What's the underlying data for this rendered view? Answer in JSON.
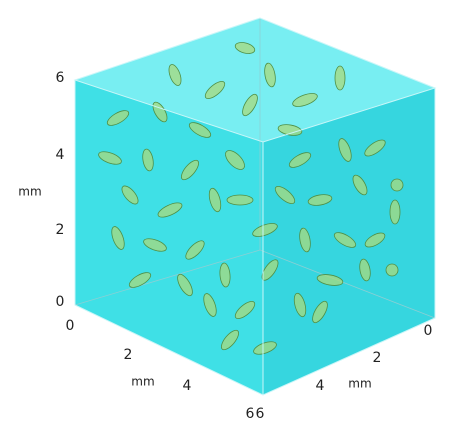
{
  "vertical_axis": {
    "ticks": [
      "6",
      "4",
      "2",
      "0"
    ],
    "label": "mm"
  },
  "x_axis": {
    "ticks": [
      "0",
      "2",
      "4",
      "6"
    ],
    "label": "mm"
  },
  "y_axis": {
    "ticks": [
      "0",
      "2",
      "4",
      "6"
    ],
    "label": "mm"
  }
}
